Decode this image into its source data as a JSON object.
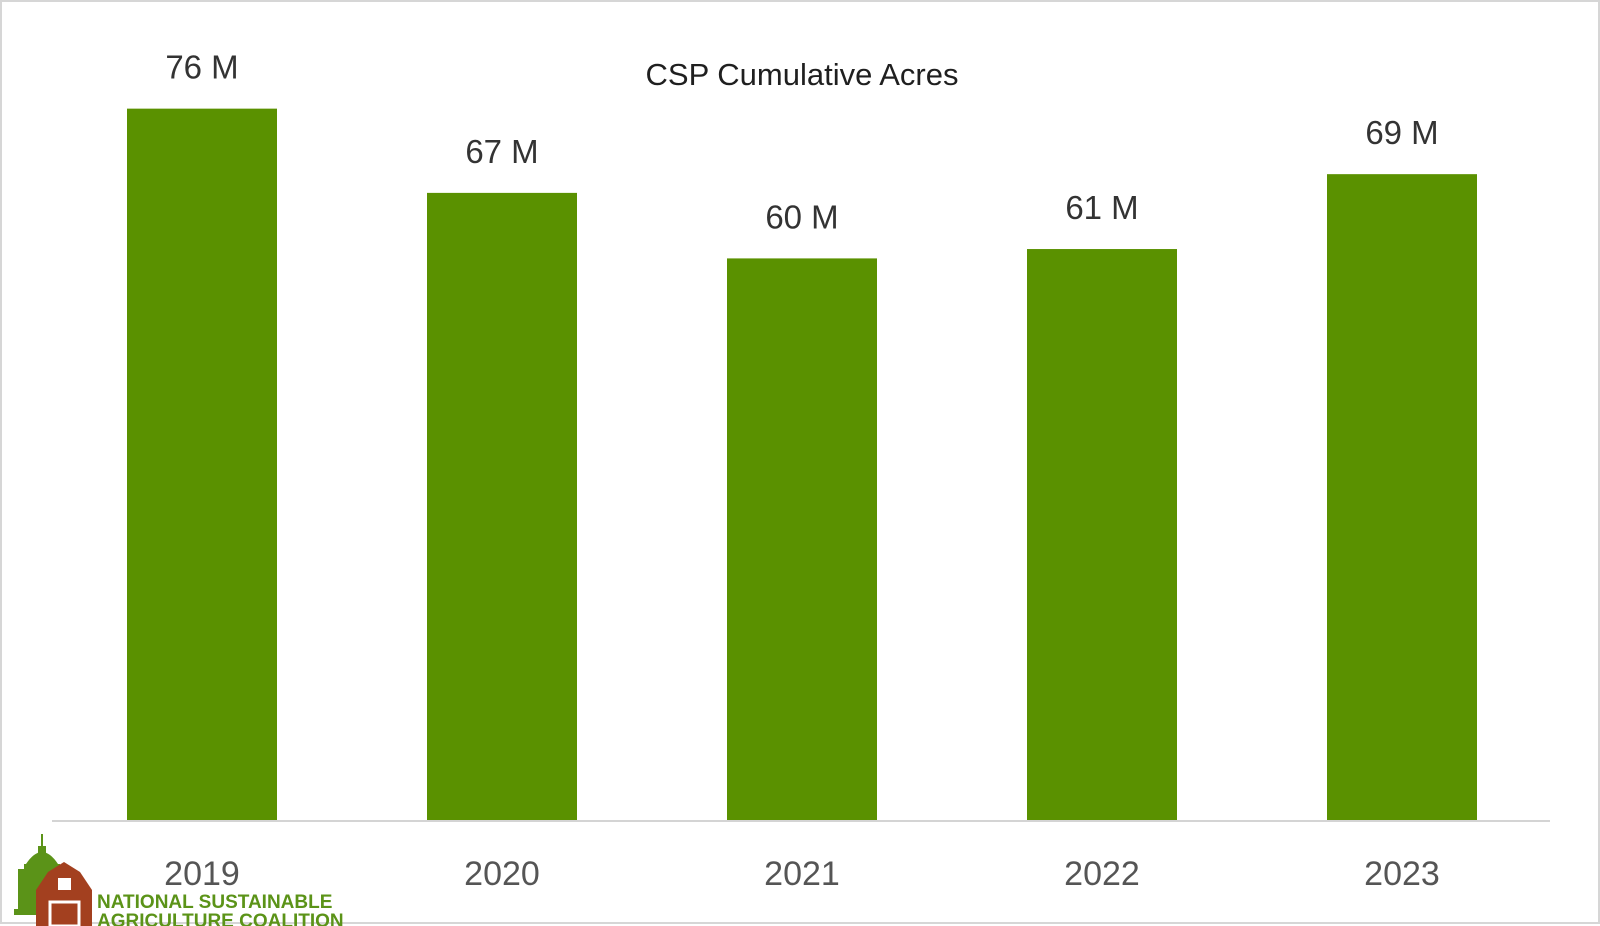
{
  "chart_data": {
    "type": "bar",
    "title": "CSP Cumulative Acres",
    "categories": [
      "2019",
      "2020",
      "2021",
      "2022",
      "2023"
    ],
    "values": [
      76,
      67,
      60,
      61,
      69
    ],
    "data_labels": [
      "76 M",
      "67 M",
      "60 M",
      "61 M",
      "69 M"
    ],
    "unit": "M",
    "xlabel": "",
    "ylabel": "",
    "ylim": [
      0,
      80
    ],
    "grid": false,
    "legend": "none",
    "bar_color": "#5a9100",
    "axis_color": "#d4d4d4"
  },
  "logo": {
    "line1": "NATIONAL SUSTAINABLE",
    "line2": "AGRICULTURE COALITION",
    "barn_color": "#a3401f",
    "capitol_color": "#5b9318"
  }
}
